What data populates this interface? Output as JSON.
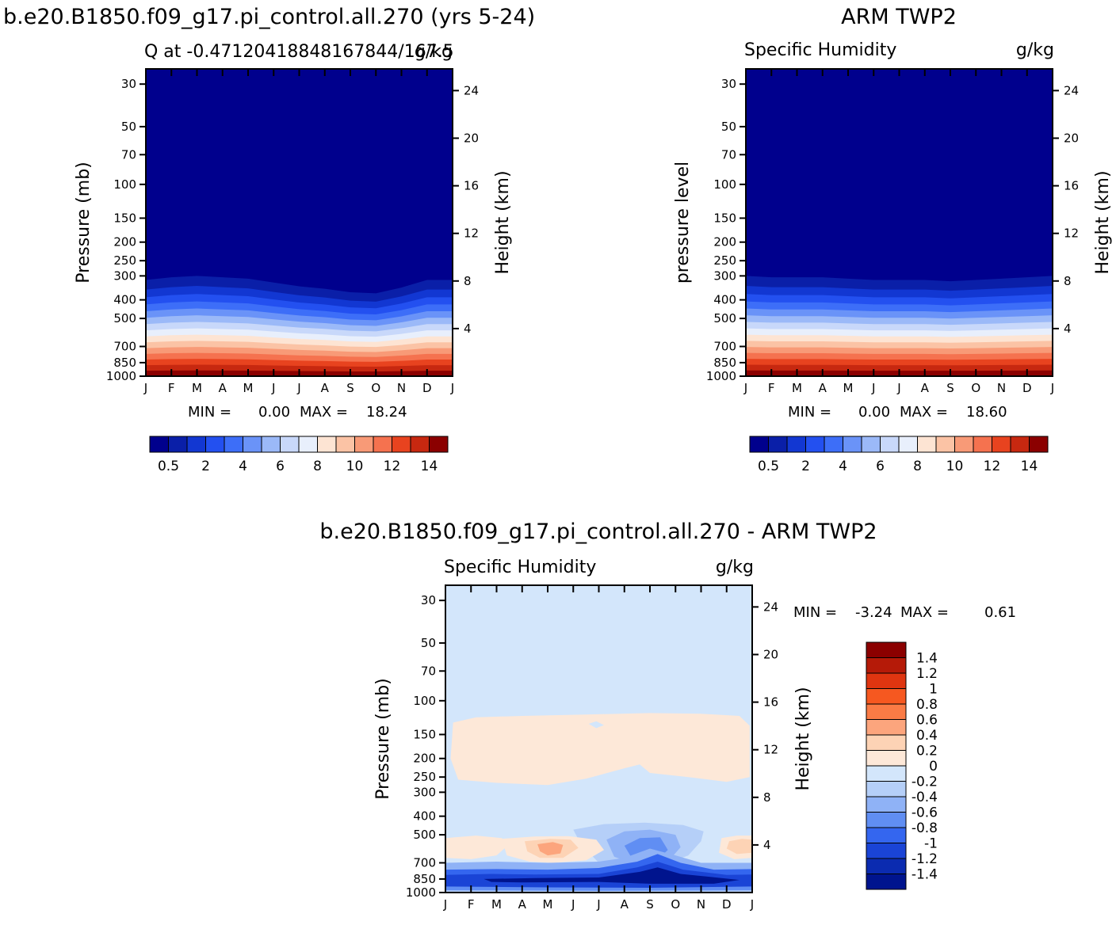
{
  "chart_data": [
    {
      "type": "heatmap",
      "figure_title": "b.e20.B1850.f09_g17.pi_control.all.270 (yrs 5-24)",
      "title": "Q at -0.47120418848167844/167.5",
      "units": "g/kg",
      "ylabel": "Pressure (mb)",
      "ylabel_right": "Height (km)",
      "x_ticks": [
        "J",
        "F",
        "M",
        "A",
        "M",
        "J",
        "J",
        "A",
        "S",
        "O",
        "N",
        "D",
        "J"
      ],
      "y_ticks": [
        "30",
        "50",
        "70",
        "100",
        "150",
        "200",
        "250",
        "300",
        "400",
        "500",
        "700",
        "850",
        "1000"
      ],
      "y_ticks_right": [
        "24",
        "20",
        "16",
        "12",
        "8",
        "4"
      ],
      "stats": {
        "min_label": "MIN =",
        "min": "0.00",
        "max_label": "MAX =",
        "max": "18.24"
      },
      "legend_labels": [
        "0.5",
        "2",
        "4",
        "6",
        "8",
        "10",
        "12",
        "14"
      ],
      "x_months": [
        1,
        2,
        3,
        4,
        5,
        6,
        7,
        8,
        9,
        10,
        11,
        12,
        13
      ],
      "pressure_levels": [
        30,
        50,
        70,
        100,
        150,
        200,
        250,
        300,
        400,
        500,
        700,
        850,
        1000
      ],
      "field_description_top_of_moist_layer_mb": [
        315,
        305,
        300,
        305,
        310,
        325,
        340,
        350,
        365,
        370,
        345,
        315,
        315
      ]
    },
    {
      "type": "heatmap",
      "figure_title": "ARM TWP2",
      "title": "Specific Humidity",
      "units": "g/kg",
      "ylabel": "pressure level",
      "ylabel_right": "Height (km)",
      "x_ticks": [
        "J",
        "F",
        "M",
        "A",
        "M",
        "J",
        "J",
        "A",
        "S",
        "O",
        "N",
        "D",
        "J"
      ],
      "y_ticks": [
        "30",
        "50",
        "70",
        "100",
        "150",
        "200",
        "250",
        "300",
        "400",
        "500",
        "700",
        "850",
        "1000"
      ],
      "y_ticks_right": [
        "24",
        "20",
        "16",
        "12",
        "8",
        "4"
      ],
      "stats": {
        "min_label": "MIN =",
        "min": "0.00",
        "max_label": "MAX =",
        "max": "18.60"
      },
      "legend_labels": [
        "0.5",
        "2",
        "4",
        "6",
        "8",
        "10",
        "12",
        "14"
      ],
      "x_months": [
        1,
        2,
        3,
        4,
        5,
        6,
        7,
        8,
        9,
        10,
        11,
        12,
        13
      ],
      "pressure_levels": [
        30,
        50,
        70,
        100,
        150,
        200,
        250,
        300,
        400,
        500,
        700,
        850,
        1000
      ],
      "field_description_top_of_moist_layer_mb": [
        300,
        305,
        305,
        305,
        310,
        315,
        315,
        315,
        320,
        315,
        310,
        305,
        300
      ]
    },
    {
      "type": "heatmap",
      "figure_title": "b.e20.B1850.f09_g17.pi_control.all.270 - ARM TWP2",
      "title": "Specific Humidity",
      "units": "g/kg",
      "ylabel": "Pressure (mb)",
      "ylabel_right": "Height (km)",
      "x_ticks": [
        "J",
        "F",
        "M",
        "A",
        "M",
        "J",
        "J",
        "A",
        "S",
        "O",
        "N",
        "D",
        "J"
      ],
      "y_ticks": [
        "30",
        "50",
        "70",
        "100",
        "150",
        "200",
        "250",
        "300",
        "400",
        "500",
        "700",
        "850",
        "1000"
      ],
      "y_ticks_right": [
        "24",
        "20",
        "16",
        "12",
        "8",
        "4"
      ],
      "stats": {
        "min_label": "MIN =",
        "min": "-3.24",
        "max_label": "MAX =",
        "max": "0.61"
      },
      "legend_labels": [
        "1.4",
        "1.2",
        "1",
        "0.8",
        "0.6",
        "0.4",
        "0.2",
        "0",
        "-0.2",
        "-0.4",
        "-0.6",
        "-0.8",
        "-1",
        "-1.2",
        "-1.4"
      ]
    }
  ],
  "colors": {
    "seq": [
      "#00008d",
      "#0a1fa8",
      "#1237d2",
      "#2350f0",
      "#3d6ef8",
      "#6a93f8",
      "#9bb9f8",
      "#c8d8fa",
      "#e8effc",
      "#fde4d3",
      "#fbc3a5",
      "#f89a77",
      "#f5724f",
      "#e8431f",
      "#c72810",
      "#8b0000"
    ],
    "div": [
      "#8b0000",
      "#b51a08",
      "#df3510",
      "#f65820",
      "#fa7b45",
      "#fca57d",
      "#fdd3b5",
      "#fde8d8",
      "#d3e6fb",
      "#b5cff8",
      "#8fb2f6",
      "#608ef3",
      "#3466ef",
      "#1a44d6",
      "#0b2bb0",
      "#00148e"
    ]
  }
}
